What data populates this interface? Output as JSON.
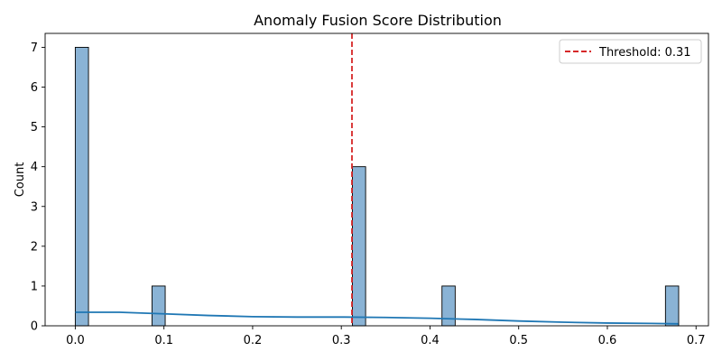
{
  "chart_data": {
    "type": "bar",
    "title": "Anomaly Fusion Score Distribution",
    "xlabel": "",
    "ylabel": "Count",
    "xlim": [
      -0.034,
      0.714
    ],
    "ylim": [
      0,
      7.35
    ],
    "xticks": [
      "0.0",
      "0.1",
      "0.2",
      "0.3",
      "0.4",
      "0.5",
      "0.6",
      "0.7"
    ],
    "xtick_values": [
      0.0,
      0.1,
      0.2,
      0.3,
      0.4,
      0.5,
      0.6,
      0.7
    ],
    "yticks": [
      "0",
      "1",
      "2",
      "3",
      "4",
      "5",
      "6",
      "7"
    ],
    "ytick_values": [
      0,
      1,
      2,
      3,
      4,
      5,
      6,
      7
    ],
    "bin_width": 0.0149,
    "bins": [
      {
        "x0": 0.0,
        "count": 7
      },
      {
        "x0": 0.0865,
        "count": 1
      },
      {
        "x0": 0.3125,
        "count": 4
      },
      {
        "x0": 0.4135,
        "count": 1
      },
      {
        "x0": 0.6655,
        "count": 1
      }
    ],
    "kde": {
      "x": [
        0.0,
        0.05,
        0.1,
        0.15,
        0.2,
        0.25,
        0.3,
        0.35,
        0.4,
        0.45,
        0.5,
        0.55,
        0.6,
        0.65,
        0.68
      ],
      "y": [
        0.34,
        0.34,
        0.3,
        0.26,
        0.23,
        0.22,
        0.22,
        0.21,
        0.19,
        0.16,
        0.12,
        0.09,
        0.07,
        0.06,
        0.05
      ]
    },
    "threshold": {
      "value": 0.312,
      "label": "Threshold: 0.31"
    },
    "colors": {
      "bar_fill": "#8ab3d5",
      "bar_edge": "#000000",
      "kde_line": "#1f77b4",
      "threshold": "#d62728"
    },
    "legend_position": "top-right",
    "grid": false
  }
}
